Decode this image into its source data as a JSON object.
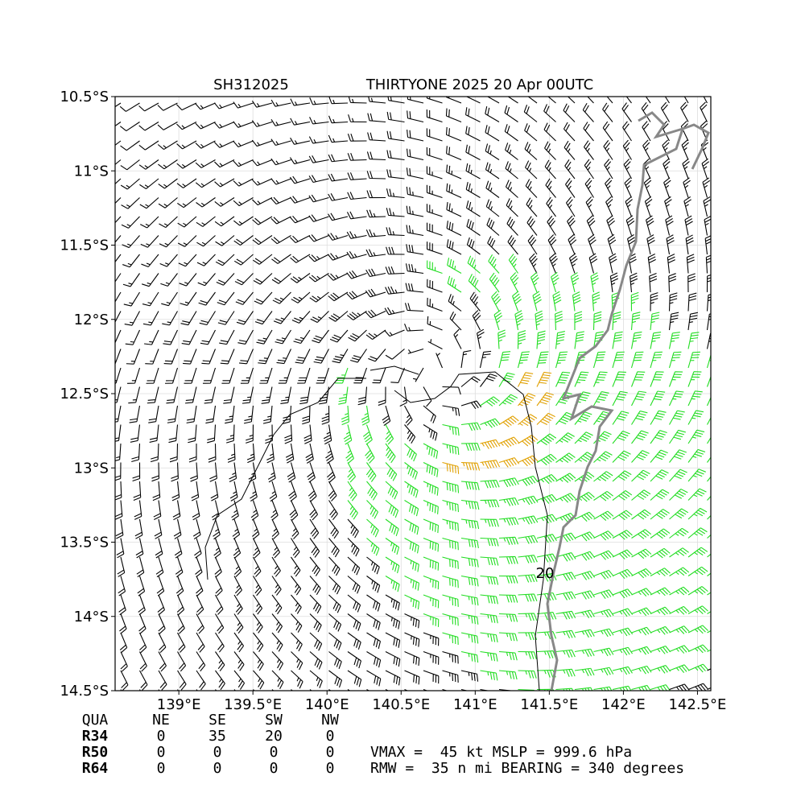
{
  "map": {
    "title_left": "SH312025",
    "title_right": "THIRTYONE 2025 20 Apr 00UTC",
    "xlim": [
      138.57,
      142.59
    ],
    "ylim": [
      -14.5,
      -10.5
    ],
    "xticks": [
      {
        "value": 139,
        "label": "139°E"
      },
      {
        "value": 139.5,
        "label": "139.5°E"
      },
      {
        "value": 140,
        "label": "140°E"
      },
      {
        "value": 140.5,
        "label": "140.5°E"
      },
      {
        "value": 141,
        "label": "141°E"
      },
      {
        "value": 141.5,
        "label": "141.5°E"
      },
      {
        "value": 142,
        "label": "142°E"
      },
      {
        "value": 142.5,
        "label": "142.5°E"
      }
    ],
    "yticks": [
      {
        "value": -10.5,
        "label": "10.5°S"
      },
      {
        "value": -11,
        "label": "11°S"
      },
      {
        "value": -11.5,
        "label": "11.5°S"
      },
      {
        "value": -12,
        "label": "12°S"
      },
      {
        "value": -12.5,
        "label": "12.5°S"
      },
      {
        "value": -13,
        "label": "13°S"
      },
      {
        "value": -13.5,
        "label": "13.5°S"
      },
      {
        "value": -14,
        "label": "14°S"
      },
      {
        "value": -14.5,
        "label": "14.5°S"
      }
    ],
    "grid": true,
    "contour_label": "20"
  },
  "table": {
    "header": [
      "QUA",
      "NE",
      "SE",
      "SW",
      "NW"
    ],
    "rows": [
      [
        "R34",
        0,
        35,
        20,
        0
      ],
      [
        "R50",
        0,
        0,
        0,
        0
      ],
      [
        "R64",
        0,
        0,
        0,
        0
      ]
    ]
  },
  "summary": [
    "VMAX =  45 kt MSLP = 999.6 hPa",
    "RMW =  35 n mi BEARING = 340 degrees"
  ]
}
